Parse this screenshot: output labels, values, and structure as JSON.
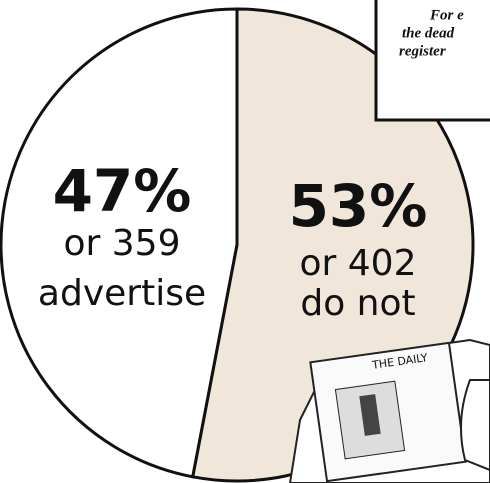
{
  "chart_data": {
    "type": "pie",
    "values": [
      47,
      53
    ],
    "value_labels": [
      "47%",
      "53%"
    ],
    "counts": [
      359,
      402
    ],
    "count_labels": [
      "or 359",
      "or 402"
    ],
    "categories": [
      "advertise",
      "do not"
    ],
    "colors": [
      "#ffffff",
      "#f1e6da"
    ],
    "start_direction": "counterclockwise"
  },
  "box_text": [
    "For e",
    "the dead",
    "register"
  ],
  "newspaper": {
    "title": "THE DAILY"
  }
}
